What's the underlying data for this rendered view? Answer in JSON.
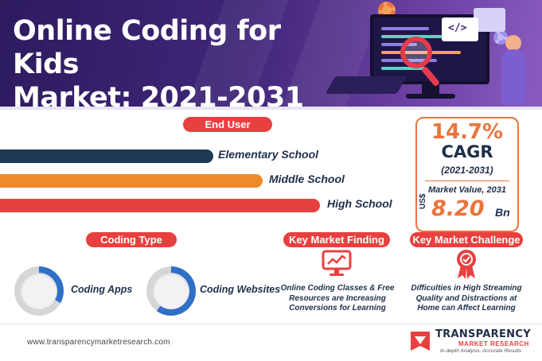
{
  "header": {
    "title_line1": "Online Coding for Kids",
    "title_line2": "Market: 2021-2031"
  },
  "end_user": {
    "label": "End User",
    "items": [
      {
        "label": "Elementary School",
        "color": "#1d3a52"
      },
      {
        "label": "Middle School",
        "color": "#ef8a2c"
      },
      {
        "label": "High School",
        "color": "#e8403f"
      }
    ]
  },
  "cagr": {
    "rate": "14.7%",
    "word": "CAGR",
    "period": "(2021-2031)",
    "market_value_label": "Market Value, 2031",
    "currency": "US$",
    "value": "8.20",
    "unit": "Bn"
  },
  "coding_type": {
    "label": "Coding Type",
    "items": [
      {
        "label": "Coding Apps",
        "share": 0.33
      },
      {
        "label": "Coding Websites",
        "share": 0.6
      }
    ]
  },
  "key_market_finding": {
    "label": "Key Market Finding",
    "line1": "Online Coding Classes & Free",
    "line2": "Resources are Increasing",
    "line3": "Conversions for Learning",
    "icon": "monitor-graph-icon"
  },
  "key_market_challenge": {
    "label": "Key Market Challenge",
    "line1": "Difficulties in High Streaming",
    "line2": "Quality and Distractions at",
    "line3": "Home can Affect Learning",
    "icon": "award-ribbon-icon"
  },
  "footer": {
    "url": "www.transparencymarketresearch.com",
    "brand": "TRANSPARENCY",
    "brand_sub": "MARKET RESEARCH",
    "tagline": "In-depth Analysis. Accurate Results"
  },
  "colors": {
    "accent_red": "#e8403f",
    "accent_orange": "#e9743d",
    "navy": "#1f2e4a",
    "header_purple": "#3f2678",
    "donut_blue": "#2f6fc6"
  }
}
